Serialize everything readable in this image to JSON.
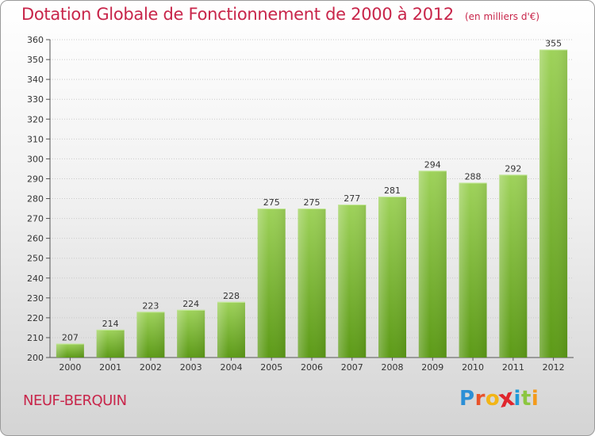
{
  "chart_data": {
    "type": "bar",
    "title": "Dotation Globale de Fonctionnement de 2000 à 2012",
    "subtitle": "(en milliers d'€)",
    "categories": [
      "2000",
      "2001",
      "2002",
      "2003",
      "2004",
      "2005",
      "2006",
      "2007",
      "2008",
      "2009",
      "2010",
      "2011",
      "2012"
    ],
    "values": [
      207,
      214,
      223,
      224,
      228,
      275,
      275,
      277,
      281,
      294,
      288,
      292,
      355
    ],
    "ylim": [
      200,
      360
    ],
    "yticks": [
      200,
      210,
      220,
      230,
      240,
      250,
      260,
      270,
      280,
      290,
      300,
      310,
      320,
      330,
      340,
      350,
      360
    ],
    "xlabel": "",
    "ylabel": "",
    "grid": true,
    "colors": {
      "bar_top": "#9ed25a",
      "bar_bottom": "#5c9a17",
      "title": "#c8254a"
    }
  },
  "footer": {
    "commune": "NEUF-BERQUIN",
    "logo_letters": [
      {
        "ch": "P",
        "color": "#2c8fd6"
      },
      {
        "ch": "r",
        "color": "#e8532b"
      },
      {
        "ch": "o",
        "color": "#f2b516"
      },
      {
        "ch": "x",
        "color": "#e0262d"
      },
      {
        "ch": "i",
        "color": "#1f9ad8"
      },
      {
        "ch": "t",
        "color": "#8cc63f"
      },
      {
        "ch": "i",
        "color": "#f39a1b"
      }
    ]
  }
}
